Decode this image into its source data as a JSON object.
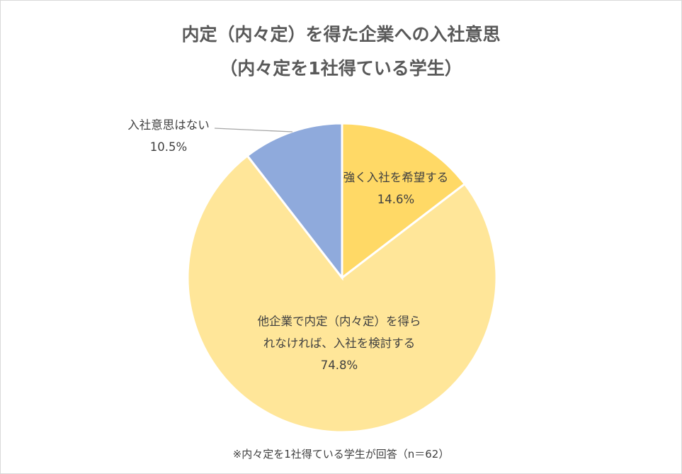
{
  "chart_data": {
    "type": "pie",
    "title": "内定（内々定）を得た企業への入社意思",
    "subtitle": "（内々定を1社得ている学生）",
    "slices": [
      {
        "label": "強く入社を希望する",
        "value": 14.6,
        "value_label": "14.6%",
        "color": "#FFD966"
      },
      {
        "label_lines": [
          "他企業で内定（内々定）を得ら",
          "れなければ、入社を検討する"
        ],
        "value": 74.8,
        "value_label": "74.8%",
        "color": "#FFE699"
      },
      {
        "label": "入社意思はない",
        "value": 10.5,
        "value_label": "10.5%",
        "color": "#8FAADC"
      }
    ],
    "start": "12 o'clock",
    "direction": "clockwise",
    "legend": "none",
    "note": "※内々定を1社得ている学生が回答（n＝62）"
  }
}
